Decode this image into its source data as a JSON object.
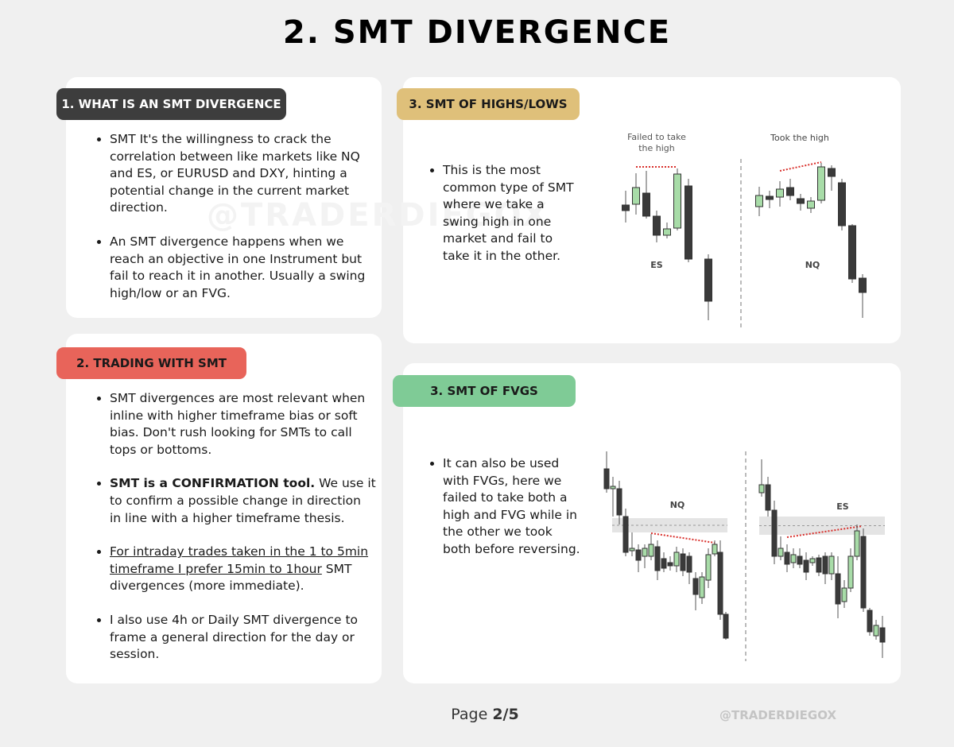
{
  "title": "2. SMT DIVERGENCE",
  "sections": [
    {
      "heading": "1. WHAT IS AN SMT DIVERGENCE",
      "color": "#3d3d3d",
      "text_color": "#ffffff",
      "bullets": [
        {
          "text": "SMT It's the willingness to crack the correlation between like markets like NQ and ES, or EURUSD and DXY, hinting a potential change in the current market direction."
        },
        {
          "text": "An SMT divergence happens when we reach an objective in one Instrument but fail to reach it in another. Usually a swing high/low or an FVG."
        }
      ]
    },
    {
      "heading": "2. TRADING WITH SMT",
      "color": "#e8645a",
      "text_color": "#1a1a1a",
      "bullets": [
        {
          "text": "SMT divergences are most relevant when inline with higher timeframe bias or soft bias. Don't rush looking for SMTs to call tops or bottoms."
        },
        {
          "lead": "SMT is a CONFIRMATION tool.",
          "lead_style": "bold",
          "text": " We use it to confirm a possible change in direction in line with a higher timeframe thesis."
        },
        {
          "lead": "For intraday trades taken in the 1 to 5min timeframe I prefer 15min to 1hour",
          "lead_style": "underline",
          "text": " SMT divergences (more immediate)."
        },
        {
          "text": "I also use 4h or Daily SMT divergence to frame a general direction for the day or session."
        }
      ]
    },
    {
      "heading": "3. SMT OF HIGHS/LOWS",
      "color": "#dfc07a",
      "text_color": "#1a1a1a",
      "bullets": [
        {
          "text": "This is the most common type of SMT where we take a swing high in one market and fail to take it in the other."
        }
      ],
      "chart_labels": [
        "Failed to take the high",
        "Took the high",
        "ES",
        "NQ"
      ]
    },
    {
      "heading": "3. SMT OF FVGS",
      "color": "#7fcb96",
      "text_color": "#1a1a1a",
      "bullets": [
        {
          "text": "It can also be used with FVGs, here we failed to take both a high and FVG while in the other we took both before reversing."
        }
      ],
      "chart_labels": [
        "NQ",
        "ES"
      ]
    }
  ],
  "footer": {
    "page_prefix": "Page",
    "page": "2/5",
    "handle": "@TRADERDIEGOX"
  }
}
